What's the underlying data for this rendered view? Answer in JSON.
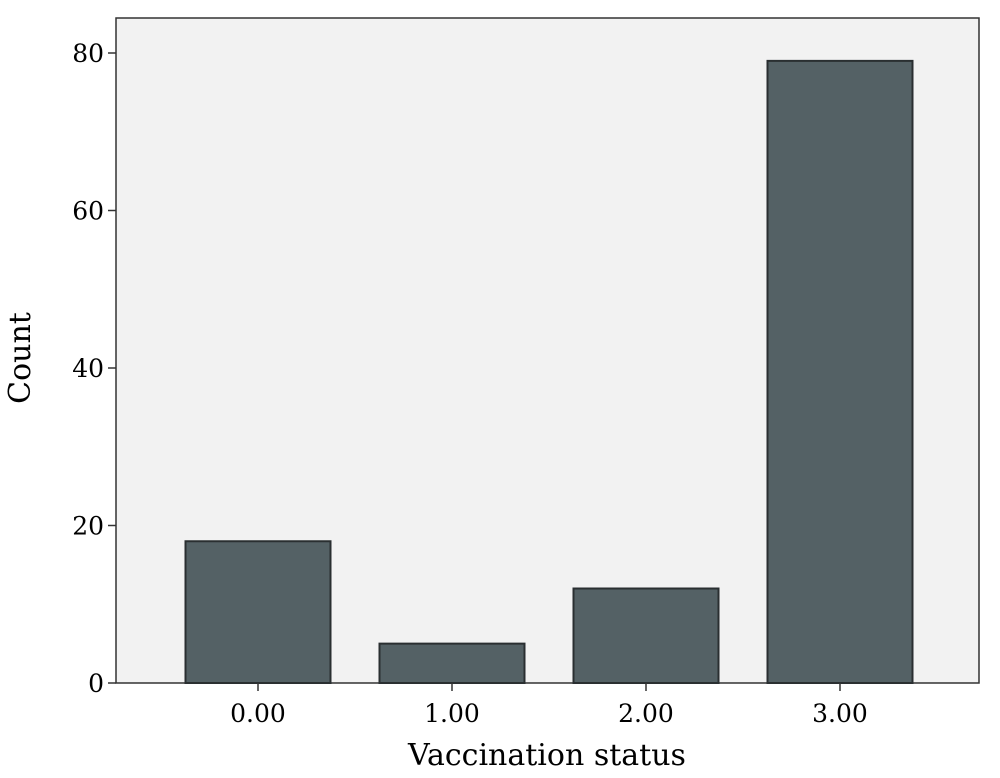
{
  "chart_data": {
    "type": "bar",
    "title": "",
    "xlabel": "Vaccination status",
    "ylabel": "Count",
    "categories": [
      "0.00",
      "1.00",
      "2.00",
      "3.00"
    ],
    "values": [
      18,
      5,
      12,
      79
    ],
    "ylim": [
      0,
      83
    ],
    "yticks": [
      "0",
      "20",
      "40",
      "60",
      "80"
    ],
    "grid": false,
    "legend": "none",
    "colors": {
      "bar_fill": "#546165",
      "bar_stroke": "#2a2f31",
      "plot_background": "#f2f2f2",
      "frame": "#333333"
    }
  }
}
